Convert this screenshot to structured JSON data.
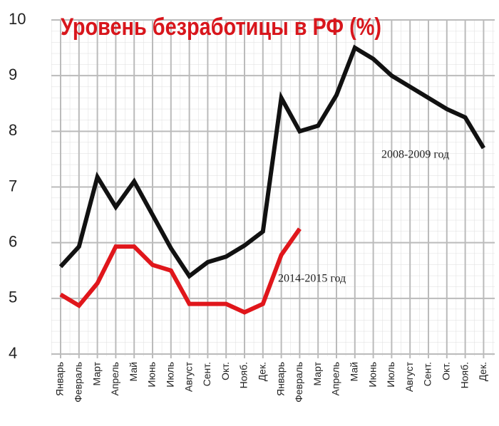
{
  "chart_data": {
    "type": "line",
    "title": "Уровень безработицы в РФ (%)",
    "categories": [
      "Январь",
      "Февраль",
      "Март",
      "Апрель",
      "Май",
      "Июнь",
      "Июль",
      "Август",
      "Сент.",
      "Окт.",
      "Нояб.",
      "Дек.",
      "Январь",
      "Февраль",
      "Март",
      "Апрель",
      "Май",
      "Июнь",
      "Июль",
      "Август",
      "Сент.",
      "Окт.",
      "Нояб.",
      "Дек."
    ],
    "series": [
      {
        "name": "2008-2009 год",
        "color": "#111111",
        "values": [
          5.57,
          5.93,
          7.18,
          6.64,
          7.1,
          6.5,
          5.9,
          5.4,
          5.65,
          5.75,
          5.95,
          6.2,
          8.6,
          8.0,
          8.1,
          8.65,
          9.5,
          9.3,
          9.0,
          8.8,
          8.6,
          8.4,
          8.25,
          7.7
        ]
      },
      {
        "name": "2014-2015 год",
        "color": "#e0161b",
        "values": [
          5.07,
          4.87,
          5.27,
          5.93,
          5.93,
          5.6,
          5.5,
          4.9,
          4.9,
          4.9,
          4.75,
          4.9,
          5.78,
          6.25,
          null,
          null,
          null,
          null,
          null,
          null,
          null,
          null,
          null,
          null
        ]
      }
    ],
    "ylim": [
      4,
      10
    ],
    "yticks": [
      4,
      5,
      6,
      7,
      8,
      9,
      10
    ],
    "grid": true
  }
}
